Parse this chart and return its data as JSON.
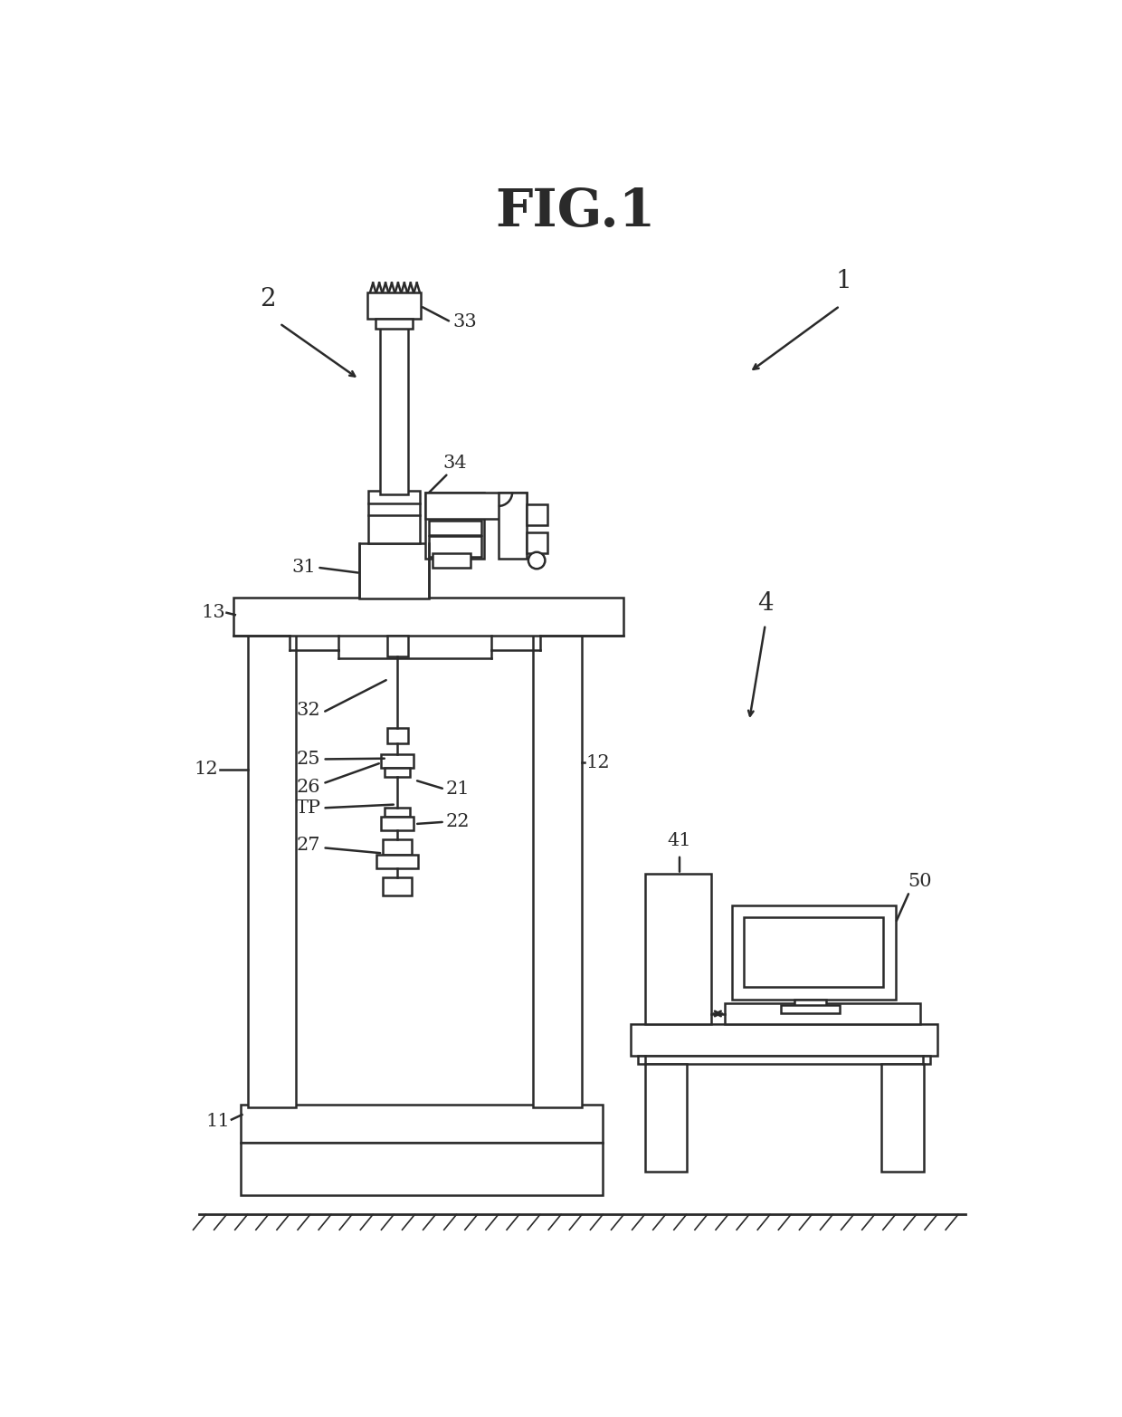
{
  "title": "FIG.1",
  "title_fontsize": 42,
  "title_fontweight": "bold",
  "bg_color": "#ffffff",
  "line_color": "#2a2a2a",
  "lw": 1.8,
  "fig_w": 12.4,
  "fig_h": 15.65,
  "dpi": 100
}
